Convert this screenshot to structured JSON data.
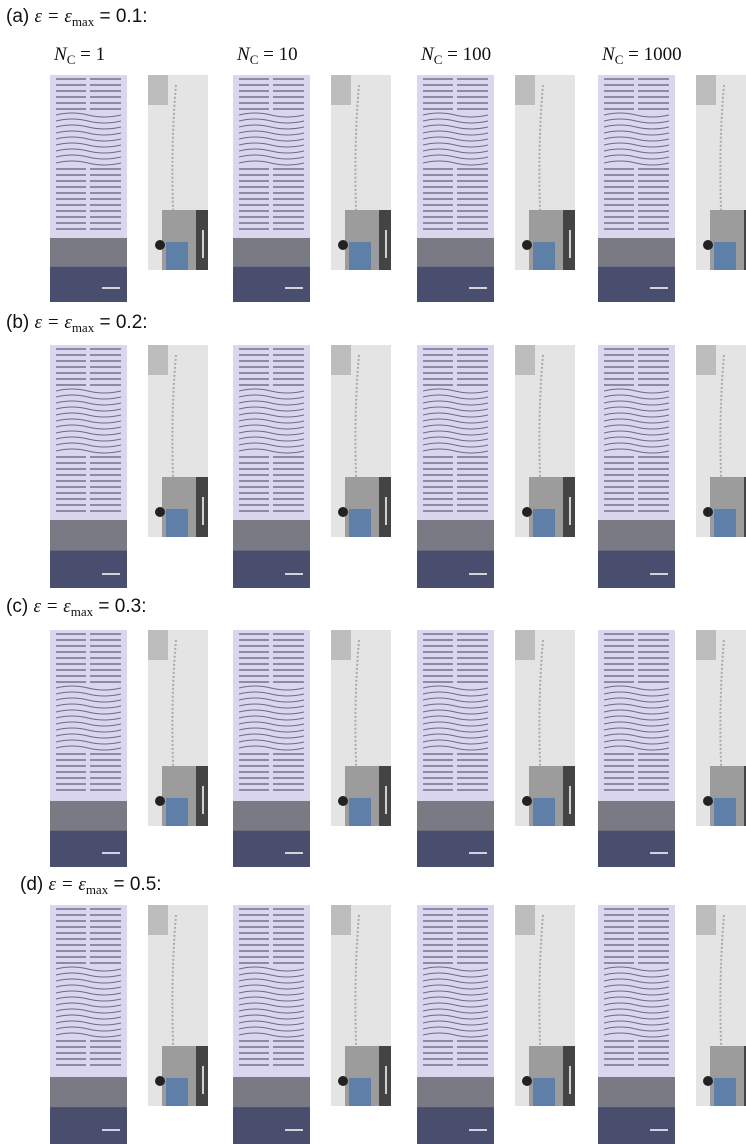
{
  "rows": [
    {
      "panel": "(a)",
      "lhs": "ε = ε",
      "sub": "max",
      "rhs": "= 0.1:"
    },
    {
      "panel": "(b)",
      "lhs": "ε = ε",
      "sub": "max",
      "rhs": "= 0.2:"
    },
    {
      "panel": "(c)",
      "lhs": "ε = ε",
      "sub": "max",
      "rhs": "= 0.3:"
    },
    {
      "panel": "(d)",
      "lhs": "ε = ε",
      "sub": "max",
      "rhs": "= 0.5:"
    }
  ],
  "columns": [
    {
      "symbol": "N",
      "sub": "C",
      "rhs": "= 1"
    },
    {
      "symbol": "N",
      "sub": "C",
      "rhs": "= 10"
    },
    {
      "symbol": "N",
      "sub": "C",
      "rhs": "= 100"
    },
    {
      "symbol": "N",
      "sub": "C",
      "rhs": "= 1000"
    }
  ]
}
